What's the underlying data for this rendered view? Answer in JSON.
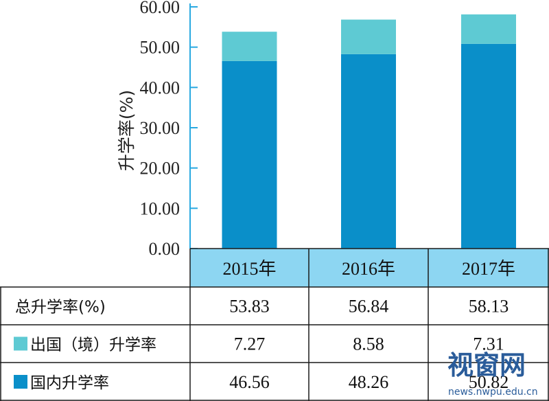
{
  "chart_data": {
    "type": "bar",
    "stacked": true,
    "categories": [
      "2015年",
      "2016年",
      "2017年"
    ],
    "series": [
      {
        "name": "国内升学率",
        "values": [
          46.56,
          48.26,
          50.82
        ],
        "color": "#0a8fc9"
      },
      {
        "name": "出国（境）升学率",
        "values": [
          7.27,
          8.58,
          7.31
        ],
        "color": "#5ecad3"
      }
    ],
    "totals": [
      53.83,
      56.84,
      58.13
    ],
    "ylabel": "升学率(%)",
    "ylim": [
      0,
      60
    ],
    "yticks": [
      "0.00",
      "10.00",
      "20.00",
      "30.00",
      "40.00",
      "50.00",
      "60.00"
    ],
    "grid": false,
    "legend": "data-table"
  },
  "table": {
    "rows": [
      {
        "label": "总升学率(%)",
        "swatch": "",
        "values": [
          "53.83",
          "56.84",
          "58.13"
        ]
      },
      {
        "label": "出国（境）升学率",
        "swatch": "#5ecad3",
        "values": [
          "7.27",
          "8.58",
          "7.31"
        ]
      },
      {
        "label": "国内升学率",
        "swatch": "#0a8fc9",
        "values": [
          "46.56",
          "48.26",
          "50.82"
        ]
      }
    ],
    "header_fill": "#8dd6f2"
  },
  "watermark": {
    "title": "视窗网",
    "url": "news.nwpu.edu.cn"
  }
}
